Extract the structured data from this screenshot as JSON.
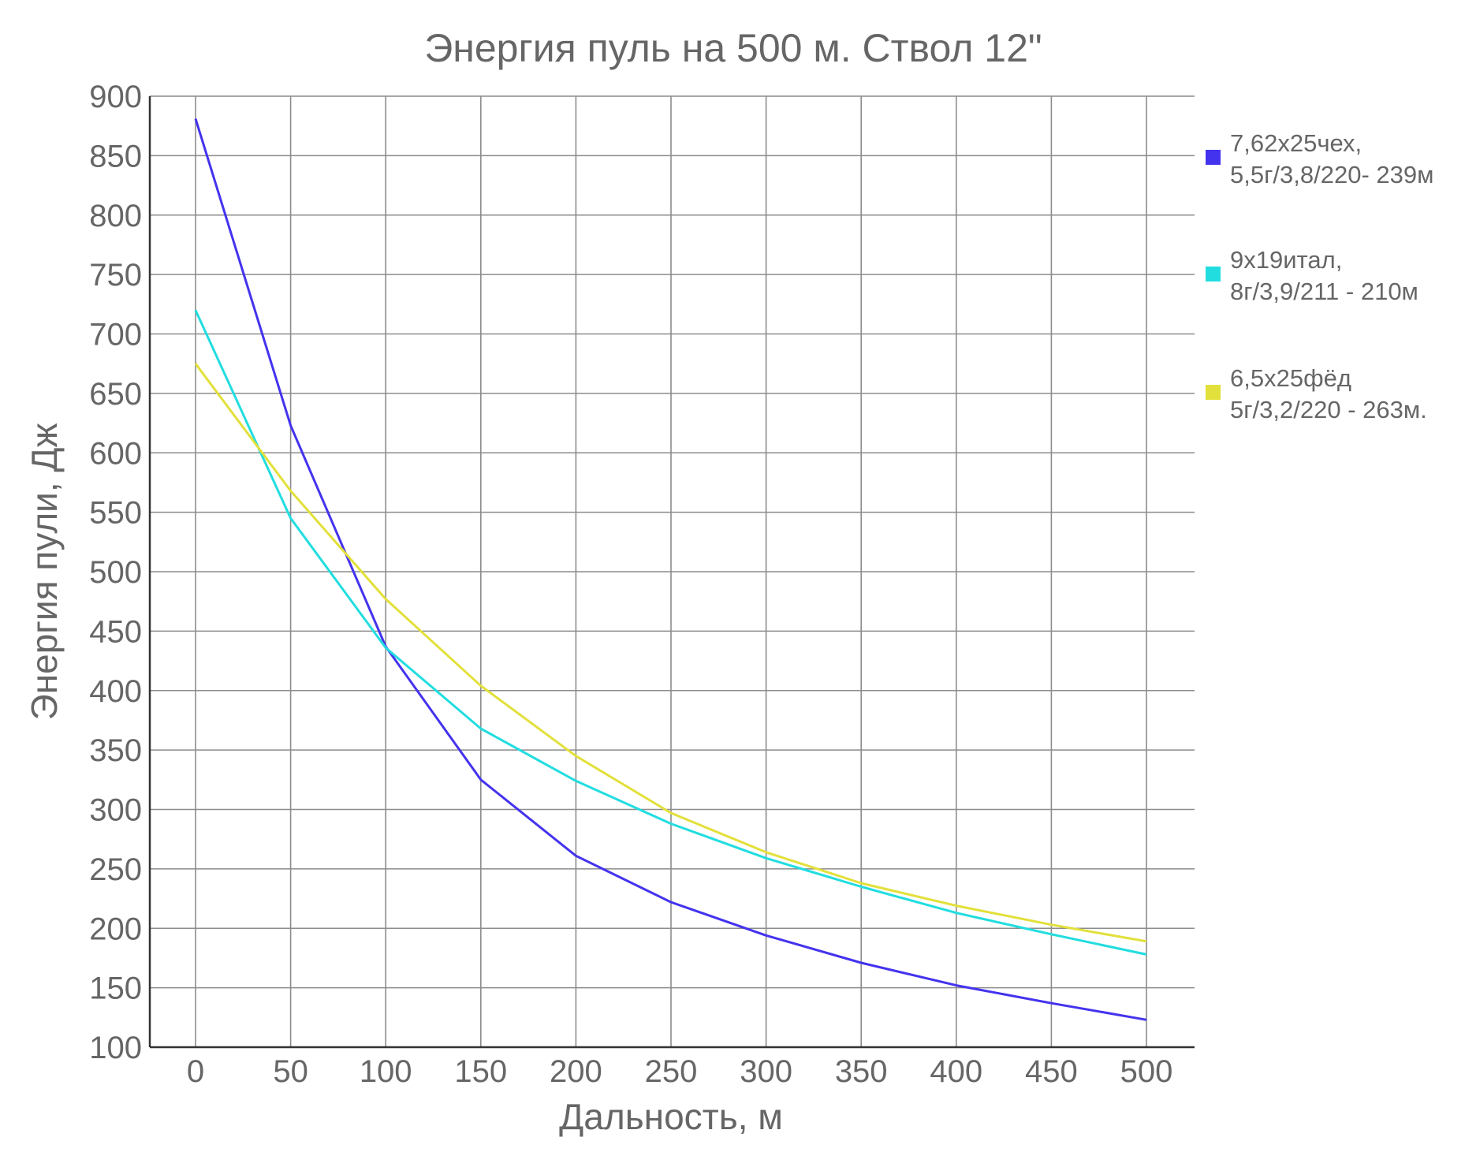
{
  "chart_data": {
    "type": "line",
    "title": "Энергия пуль на 500 м. Ствол 12\"",
    "xlabel": "Дальность, м",
    "ylabel": "Энергия пули, Дж",
    "x": [
      0,
      50,
      100,
      150,
      200,
      250,
      300,
      350,
      400,
      450,
      500
    ],
    "xlim": [
      0,
      500
    ],
    "ylim": [
      100,
      900
    ],
    "yticks": [
      100,
      150,
      200,
      250,
      300,
      350,
      400,
      450,
      500,
      550,
      600,
      650,
      700,
      750,
      800,
      850,
      900
    ],
    "grid": true,
    "legend_position": "right",
    "series": [
      {
        "name": "7,62х25чех, 5,5г/3,8/220- 239м",
        "legend_lines": [
          "7,62х25чех,",
          "5,5г/3,8/220- 239м"
        ],
        "color": "#4433ee",
        "values": [
          881,
          623,
          437,
          325,
          261,
          222,
          194,
          171,
          152,
          137,
          123
        ]
      },
      {
        "name": "9х19итал, 8г/3,9/211 - 210м",
        "legend_lines": [
          "9х19итал,",
          "8г/3,9/211 - 210м"
        ],
        "color": "#22dde0",
        "values": [
          720,
          545,
          436,
          368,
          324,
          288,
          259,
          235,
          213,
          195,
          178
        ]
      },
      {
        "name": "6,5х25фёд 5г/3,2/220 - 263м.",
        "legend_lines": [
          "6,5х25фёд",
          "5г/3,2/220 - 263м."
        ],
        "color": "#e2e03a",
        "values": [
          675,
          568,
          477,
          404,
          345,
          297,
          264,
          238,
          219,
          203,
          189
        ]
      }
    ]
  }
}
